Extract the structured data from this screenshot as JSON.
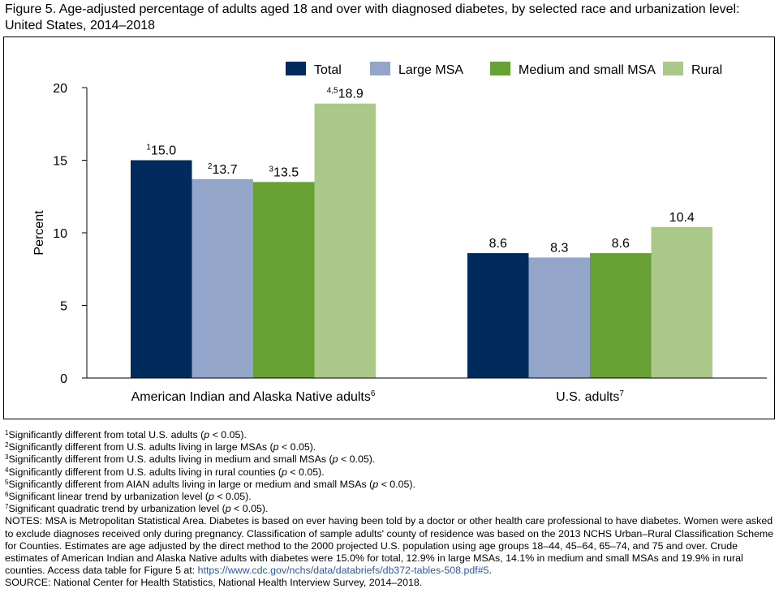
{
  "title": "Figure 5. Age-adjusted percentage of adults aged 18 and over with diagnosed diabetes, by selected race and urbanization level: United States, 2014–2018",
  "colors": {
    "Total": "#002b5c",
    "Large MSA": "#93a5c8",
    "Medium and small MSA": "#67a033",
    "Rural": "#abc88b"
  },
  "chart_data": {
    "type": "bar",
    "ylabel": "Percent",
    "xlabel": "",
    "ylim": [
      0,
      20
    ],
    "yticks": [
      0,
      5,
      10,
      15,
      20
    ],
    "legend_position": "top-right",
    "grid": false,
    "categories": [
      {
        "label": "American Indian and Alaska Native adults",
        "sup": "6"
      },
      {
        "label": "U.S. adults",
        "sup": "7"
      }
    ],
    "series": [
      {
        "name": "Total",
        "values": [
          15.0,
          8.6
        ],
        "value_labels": [
          "15.0",
          "8.6"
        ],
        "label_sups": [
          "1",
          ""
        ]
      },
      {
        "name": "Large MSA",
        "values": [
          13.7,
          8.3
        ],
        "value_labels": [
          "13.7",
          "8.3"
        ],
        "label_sups": [
          "2",
          ""
        ]
      },
      {
        "name": "Medium and small MSA",
        "values": [
          13.5,
          8.6
        ],
        "value_labels": [
          "13.5",
          "8.6"
        ],
        "label_sups": [
          "3",
          ""
        ]
      },
      {
        "name": "Rural",
        "values": [
          18.9,
          10.4
        ],
        "value_labels": [
          "18.9",
          "10.4"
        ],
        "label_sups": [
          "4,5",
          ""
        ]
      }
    ]
  },
  "footnotes": [
    {
      "num": "1",
      "text": "Significantly different from total U.S. adults (",
      "p": "p",
      "end": " < 0.05)."
    },
    {
      "num": "2",
      "text": "Significantly different from U.S. adults living in large MSAs (",
      "p": "p",
      "end": " < 0.05)."
    },
    {
      "num": "3",
      "text": "Significantly different from U.S. adults living in medium and small MSAs (",
      "p": "p",
      "end": " < 0.05)."
    },
    {
      "num": "4",
      "text": "Significantly different from U.S. adults living in rural counties (",
      "p": "p",
      "end": " < 0.05)."
    },
    {
      "num": "5",
      "text": "Significantly different from AIAN adults living in large or medium and small MSAs (",
      "p": "p",
      "end": " < 0.05)."
    },
    {
      "num": "6",
      "text": "Significant linear trend by urbanization level (",
      "p": "p",
      "end": " < 0.05)."
    },
    {
      "num": "7",
      "text": "Significant quadratic trend by urbanization level (",
      "p": "p",
      "end": " < 0.05)."
    }
  ],
  "notes": {
    "text": "NOTES: MSA is Metropolitan Statistical Area. Diabetes is based on ever having been told by a doctor or other health care professional to have diabetes. Women were asked to exclude diagnoses received only during pregnancy. Classification of sample adults' county of residence was based on the 2013 NCHS Urban–Rural Classification Scheme for Counties. Estimates are age adjusted by the direct method to the 2000 projected U.S. population using age groups 18–44, 45–64, 65–74, and 75 and over. Crude estimates of American Indian and Alaska Native adults with diabetes were 15.0% for total, 12.9% in large MSAs, 14.1% in medium and small MSAs and 19.9% in rural counties. Access data table for Figure 5 at: ",
    "link_text": "https://www.cdc.gov/nchs/data/databriefs/db372-tables-508.pdf#5",
    "link_end": "."
  },
  "source": "SOURCE: National Center for Health Statistics, National Health Interview Survey, 2014–2018."
}
